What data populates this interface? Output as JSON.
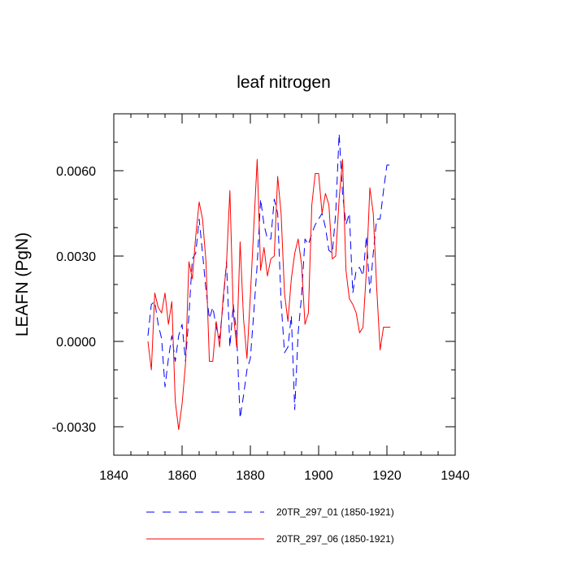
{
  "chart_data": {
    "type": "line",
    "title": "leaf nitrogen",
    "xlabel": "",
    "ylabel": "LEAFN  (PgN)",
    "xlim": [
      1840,
      1940
    ],
    "ylim": [
      -0.004,
      0.008
    ],
    "x_ticks": [
      1840,
      1860,
      1880,
      1900,
      1920,
      1940
    ],
    "x_tick_labels": [
      "1840",
      "1860",
      "1880",
      "1900",
      "1920",
      "1940"
    ],
    "y_ticks": [
      -0.003,
      0.0,
      0.003,
      0.006
    ],
    "y_tick_labels": [
      "-0.0030",
      "0.0000",
      "0.0030",
      "0.0060"
    ],
    "grid": false,
    "legend_position": "bottom",
    "x": [
      1850,
      1851,
      1852,
      1853,
      1854,
      1855,
      1856,
      1857,
      1858,
      1859,
      1860,
      1861,
      1862,
      1863,
      1864,
      1865,
      1866,
      1867,
      1868,
      1869,
      1870,
      1871,
      1872,
      1873,
      1874,
      1875,
      1876,
      1877,
      1878,
      1879,
      1880,
      1881,
      1882,
      1883,
      1884,
      1885,
      1886,
      1887,
      1888,
      1889,
      1890,
      1891,
      1892,
      1893,
      1894,
      1895,
      1896,
      1897,
      1898,
      1899,
      1900,
      1901,
      1902,
      1903,
      1904,
      1905,
      1906,
      1907,
      1908,
      1909,
      1910,
      1911,
      1912,
      1913,
      1914,
      1915,
      1916,
      1917,
      1918,
      1919,
      1920,
      1921
    ],
    "series": [
      {
        "name": "20TR_297_01 (1850-1921)",
        "color": "#0000ff",
        "style": "dashed",
        "values": [
          0.0002,
          0.0013,
          0.0014,
          0.0006,
          0.0001,
          -0.0016,
          -0.0006,
          0.0002,
          -0.0007,
          0.0002,
          0.0006,
          -0.0007,
          0.0009,
          0.0029,
          0.0031,
          0.0043,
          0.0031,
          0.0018,
          0.0008,
          0.0012,
          0.0005,
          0.0001,
          0.0013,
          0.0028,
          -0.0002,
          0.0013,
          0.0002,
          -0.0027,
          -0.0019,
          -0.001,
          -0.0006,
          0.001,
          0.0027,
          0.005,
          0.0041,
          0.0036,
          0.0036,
          0.005,
          0.0045,
          0.0014,
          -0.0004,
          -0.0002,
          0.0009,
          -0.0024,
          0.0003,
          0.0016,
          0.0036,
          0.0034,
          0.0038,
          0.0041,
          0.0043,
          0.0045,
          0.004,
          0.0032,
          0.0031,
          0.0045,
          0.0073,
          0.0052,
          0.0041,
          0.0045,
          0.0017,
          0.0025,
          0.0026,
          0.0023,
          0.0037,
          0.0017,
          0.0031,
          0.0043,
          0.0043,
          0.0053,
          0.0062,
          0.0062
        ]
      },
      {
        "name": "20TR_297_06 (1850-1921)",
        "color": "#ff0000",
        "style": "solid",
        "values": [
          0.0,
          -0.001,
          0.0017,
          0.0012,
          0.001,
          0.0017,
          0.0006,
          0.0014,
          -0.0021,
          -0.0031,
          -0.0022,
          -0.0008,
          0.0028,
          0.0022,
          0.0037,
          0.0049,
          0.0043,
          0.0028,
          -0.0007,
          -0.0007,
          0.0007,
          -0.0002,
          0.0015,
          0.0027,
          0.0053,
          0.001,
          -0.0002,
          0.0035,
          0.0008,
          -0.0006,
          0.0016,
          0.004,
          0.0064,
          0.0025,
          0.0033,
          0.0023,
          0.0029,
          0.003,
          0.0058,
          0.0045,
          0.0017,
          0.0007,
          0.0022,
          0.0031,
          0.0036,
          0.0027,
          0.0006,
          0.001,
          0.0048,
          0.0059,
          0.0059,
          0.0045,
          0.0052,
          0.0048,
          0.0029,
          0.003,
          0.005,
          0.0064,
          0.0025,
          0.0015,
          0.0013,
          0.001,
          0.0003,
          0.0005,
          0.0025,
          0.0054,
          0.0045,
          0.0019,
          -0.0003,
          0.0005,
          0.0005,
          0.0005
        ]
      }
    ]
  }
}
